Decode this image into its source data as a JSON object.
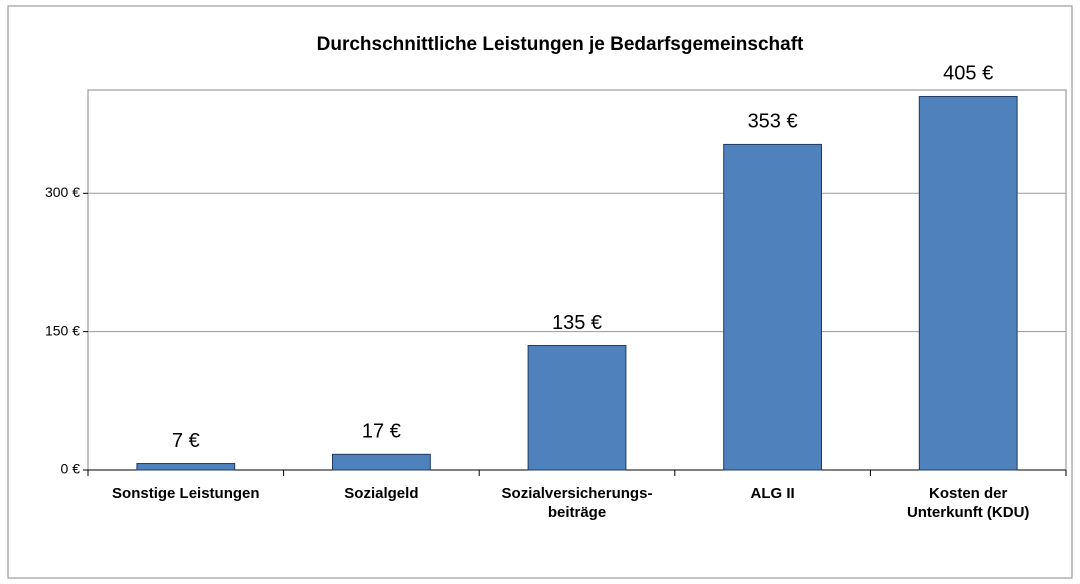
{
  "chart_data": {
    "type": "bar",
    "title": "Durchschnittliche  Leistungen  je Bedarfsgemeinschaft",
    "categories": [
      "Sonstige Leistungen",
      "Sozialgeld",
      "Sozialversicherungs-\nbeiträge",
      "ALG II",
      "Kosten der\nUnterkunft (KDU)"
    ],
    "values": [
      7,
      17,
      135,
      353,
      405
    ],
    "value_labels": [
      "7 €",
      "17 €",
      "135 €",
      "353 €",
      "405 €"
    ],
    "color": "#4f81bd",
    "ylim": [
      0,
      412
    ],
    "yticks": [
      {
        "value": 0,
        "label": "0 €"
      },
      {
        "value": 150,
        "label": "150 €"
      },
      {
        "value": 300,
        "label": "300 €"
      }
    ],
    "grid": true
  }
}
